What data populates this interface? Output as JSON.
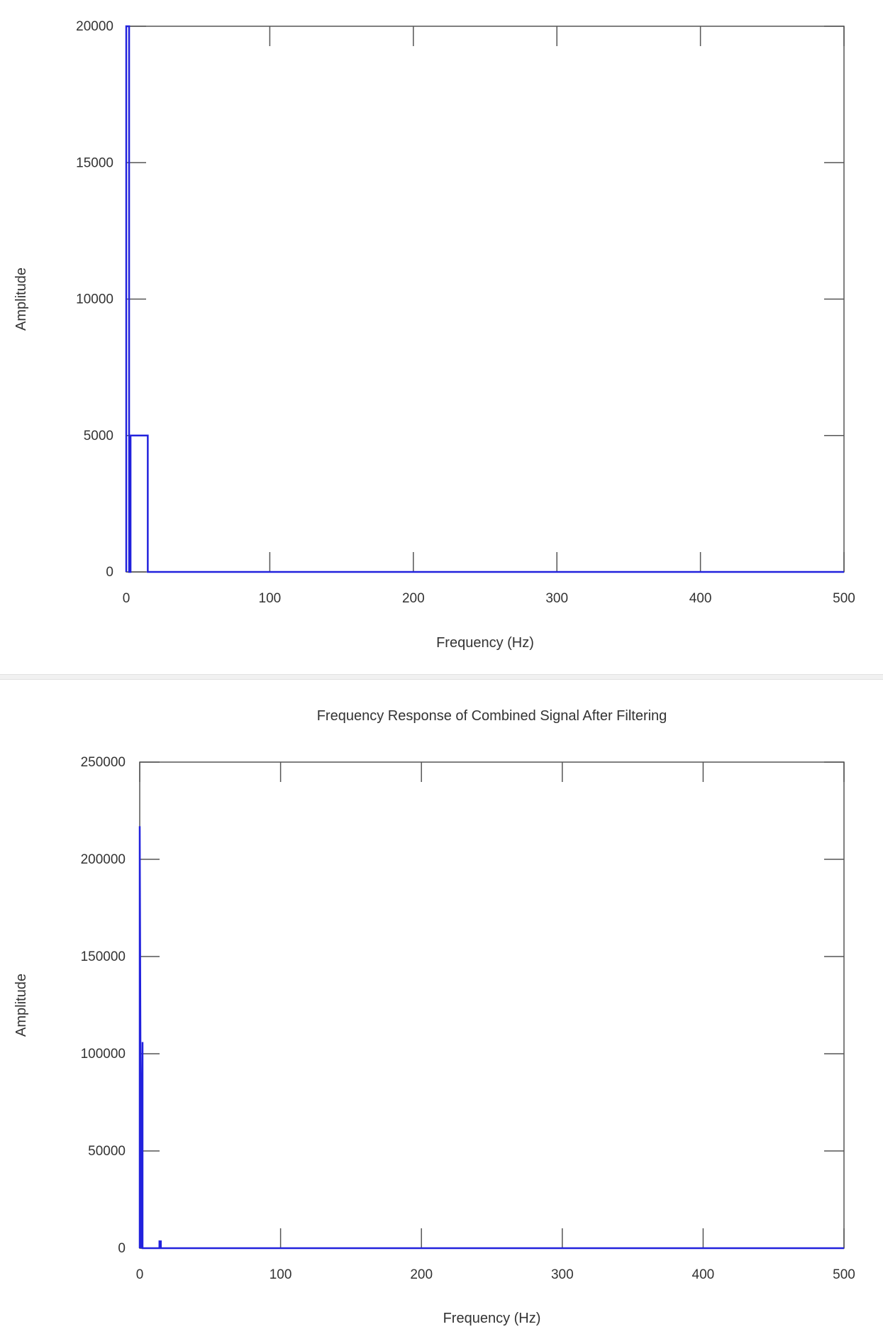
{
  "chart_data": [
    {
      "type": "line",
      "title": "",
      "xlabel": "Frequency (Hz)",
      "ylabel": "Amplitude",
      "xlim": [
        0,
        500
      ],
      "ylim": [
        0,
        20000
      ],
      "xticks": [
        0,
        100,
        200,
        300,
        400,
        500
      ],
      "xtick_labels": [
        "0",
        "100",
        "200",
        "300",
        "400",
        "500"
      ],
      "yticks": [
        0,
        5000,
        10000,
        15000,
        20000
      ],
      "ytick_labels": [
        "0",
        "5000",
        "10000",
        "15000",
        "20000"
      ],
      "grid": false,
      "color": "#2222dd",
      "series": [
        {
          "x": [
            0,
            0,
            2,
            2,
            3,
            3,
            15,
            15,
            500
          ],
          "y": [
            0,
            20000,
            20000,
            0,
            0,
            5000,
            5000,
            0,
            0
          ]
        }
      ]
    },
    {
      "type": "line",
      "title": "Frequency Response of Combined Signal After Filtering",
      "xlabel": "Frequency (Hz)",
      "ylabel": "Amplitude",
      "xlim": [
        0,
        500
      ],
      "ylim": [
        0,
        250000
      ],
      "xticks": [
        0,
        100,
        200,
        300,
        400,
        500
      ],
      "xtick_labels": [
        "0",
        "100",
        "200",
        "300",
        "400",
        "500"
      ],
      "yticks": [
        0,
        50000,
        100000,
        150000,
        200000,
        250000
      ],
      "ytick_labels": [
        "0",
        "50000",
        "100000",
        "150000",
        "200000",
        "250000"
      ],
      "grid": false,
      "color": "#2222dd",
      "series": [
        {
          "x": [
            0,
            0,
            1,
            1,
            2,
            2,
            14,
            14,
            15,
            15,
            500
          ],
          "y": [
            0,
            217000,
            0,
            0,
            106000,
            0,
            0,
            3500,
            3500,
            0,
            0
          ]
        }
      ]
    }
  ]
}
